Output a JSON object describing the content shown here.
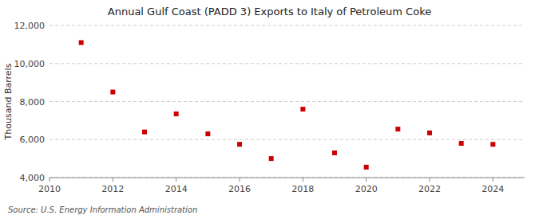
{
  "chart_data": {
    "type": "scatter",
    "title": "Annual Gulf Coast (PADD 3) Exports to Italy of Petroleum Coke",
    "y_label": "Thousand Barrels",
    "annotations": [
      "Source: U.S. Energy Information Administration"
    ],
    "x": [
      2011,
      2012,
      2013,
      2014,
      2015,
      2016,
      2017,
      2018,
      2019,
      2020,
      2021,
      2022,
      2023,
      2024
    ],
    "values": [
      11100,
      8500,
      6400,
      7350,
      6300,
      5750,
      5000,
      7600,
      5300,
      4550,
      6550,
      6350,
      5800,
      5750
    ],
    "color": "#cc0000",
    "marker": "square",
    "xlim": [
      2010,
      2025
    ],
    "ylim": [
      4000,
      12000
    ],
    "xticks": [
      2010,
      2012,
      2014,
      2016,
      2018,
      2020,
      2022,
      2024
    ],
    "yticks": [
      {
        "value": 4000,
        "label": "4,000"
      },
      {
        "value": 6000,
        "label": "6,000"
      },
      {
        "value": 8000,
        "label": "8,000"
      },
      {
        "value": 10000,
        "label": "10,000"
      },
      {
        "value": 12000,
        "label": "12,000"
      }
    ],
    "grid": "y"
  }
}
